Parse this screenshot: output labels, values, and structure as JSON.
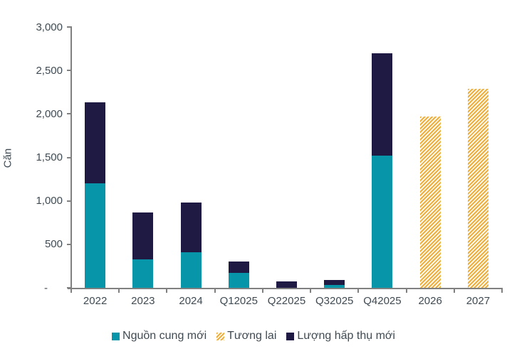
{
  "chart_data": {
    "type": "bar",
    "stacked": true,
    "title": "",
    "xlabel": "",
    "ylabel": "Căn",
    "ylim": [
      0,
      3000
    ],
    "grid": false,
    "legend_position": "bottom-center",
    "categories": [
      "2022",
      "2023",
      "2024",
      "Q12025",
      "Q22025",
      "Q32025",
      "Q42025",
      "2026",
      "2027"
    ],
    "series": [
      {
        "name": "Nguồn cung mới",
        "color": "#0795a9",
        "pattern": "solid",
        "values": [
          1200,
          330,
          410,
          170,
          0,
          30,
          1520,
          0,
          0
        ]
      },
      {
        "name": "Tương lai",
        "color": "#efaf3d",
        "pattern": "diagonal-hatch",
        "values": [
          0,
          0,
          0,
          0,
          0,
          0,
          0,
          1970,
          2290
        ]
      },
      {
        "name": "Lượng hấp thụ mới",
        "color": "#1f1a44",
        "pattern": "solid",
        "values": [
          930,
          540,
          570,
          130,
          70,
          60,
          1180,
          0,
          0
        ]
      }
    ],
    "ytick_values": [
      0,
      500,
      1000,
      1500,
      2000,
      2500,
      3000
    ],
    "ytick_labels": [
      "-",
      "500",
      "1,000",
      "1,500",
      "2,000",
      "2,500",
      "3,000"
    ]
  },
  "colors": {
    "axis": "#808080",
    "tick_text": "#3f4a52",
    "background": "#ffffff",
    "hatch_stripe": "#ffffff"
  }
}
